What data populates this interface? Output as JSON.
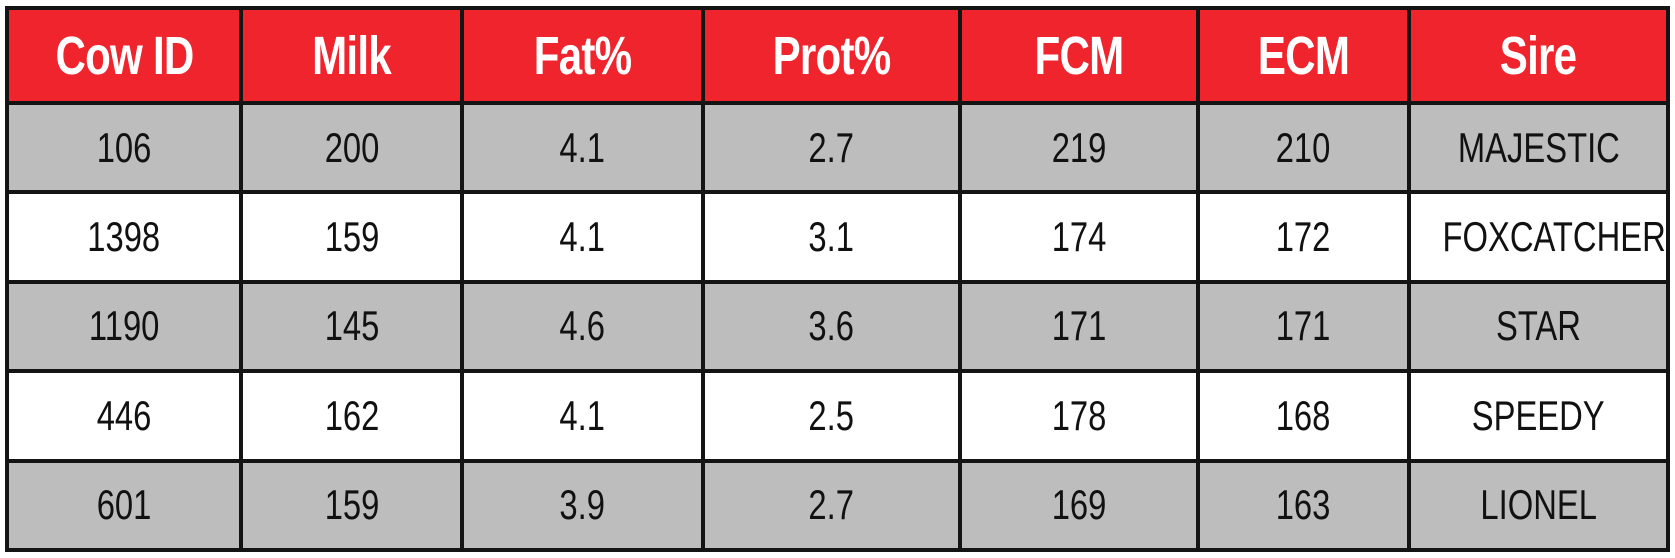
{
  "table": {
    "headers": [
      "Cow ID",
      "Milk",
      "Fat%",
      "Prot%",
      "FCM",
      "ECM",
      "Sire"
    ],
    "rows": [
      [
        "106",
        "200",
        "4.1",
        "2.7",
        "219",
        "210",
        "MAJESTIC"
      ],
      [
        "1398",
        "159",
        "4.1",
        "3.1",
        "174",
        "172",
        "FOXCATCHER"
      ],
      [
        "1190",
        "145",
        "4.6",
        "3.6",
        "171",
        "171",
        "STAR"
      ],
      [
        "446",
        "162",
        "4.1",
        "2.5",
        "178",
        "168",
        "SPEEDY"
      ],
      [
        "601",
        "159",
        "3.9",
        "2.7",
        "169",
        "163",
        "LIONEL"
      ]
    ]
  },
  "colors": {
    "header_background": "#ef242c",
    "header_text": "#ffffff",
    "row_shaded": "#bdbdbd",
    "row_plain": "#ffffff",
    "grid_lines": "#141414"
  }
}
